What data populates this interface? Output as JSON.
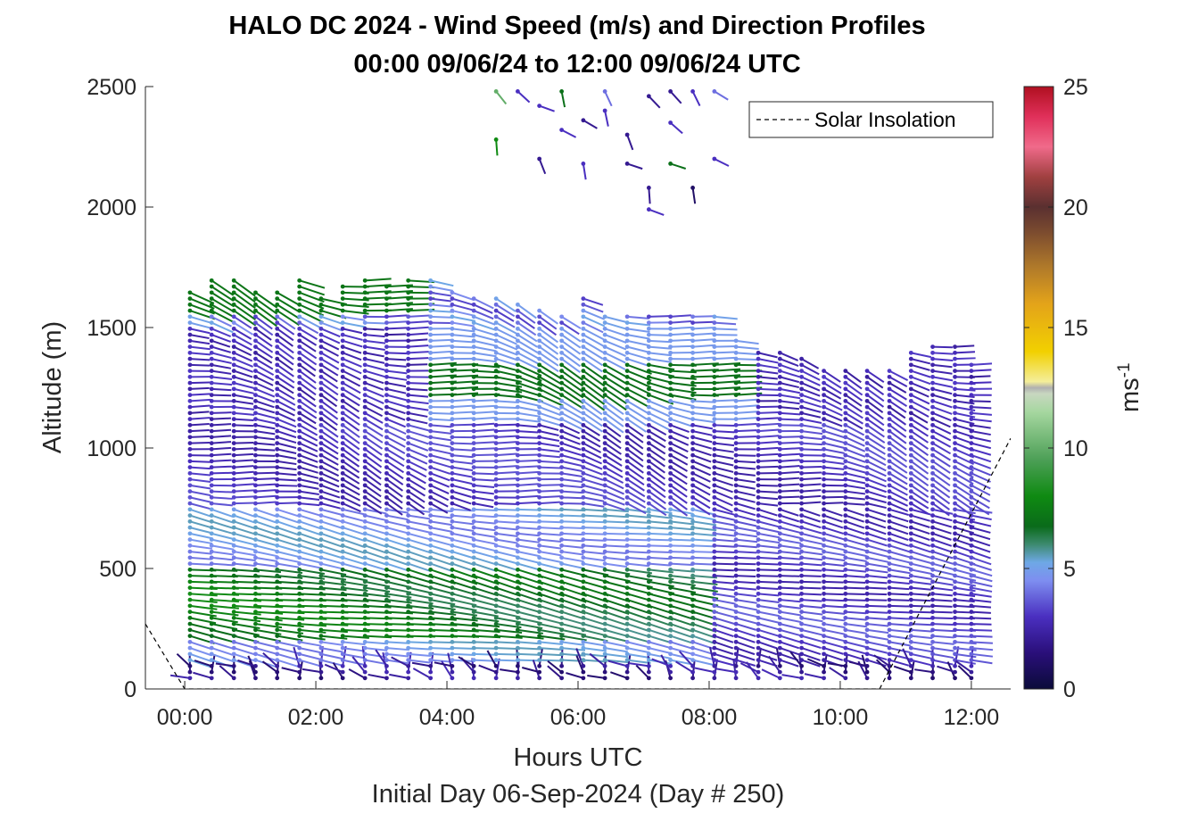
{
  "chart_data": {
    "type": "wind_barb_profile",
    "title": "HALO DC 2024 - Wind Speed (m/s) and Direction Profiles",
    "subtitle": "00:00 09/06/24 to 12:00 09/06/24  UTC",
    "xlabel": "Hours UTC",
    "ylabel": "Altitude (m)",
    "footer": "Initial Day 06-Sep-2024 (Day # 250)",
    "x_ticks": [
      "00:00",
      "02:00",
      "04:00",
      "06:00",
      "08:00",
      "10:00",
      "12:00"
    ],
    "x_tick_hours": [
      0,
      2,
      4,
      6,
      8,
      10,
      12
    ],
    "xlim": [
      -0.6,
      12.6
    ],
    "y_ticks": [
      "0",
      "500",
      "1000",
      "1500",
      "2000",
      "2500"
    ],
    "y_tick_values": [
      0,
      500,
      1000,
      1500,
      2000,
      2500
    ],
    "ylim": [
      0,
      2500
    ],
    "colorbar": {
      "label": "ms",
      "label_superscript": "-1",
      "range": [
        0,
        25
      ],
      "ticks": [
        "0",
        "5",
        "10",
        "15",
        "20",
        "25"
      ],
      "tick_values": [
        0,
        5,
        10,
        15,
        20,
        25
      ]
    },
    "legend": {
      "entries": [
        "Solar Insolation"
      ],
      "placement": "top-right"
    },
    "solar_insolation": {
      "hours": [
        -0.6,
        0,
        10.6,
        12.6
      ],
      "values": [
        270,
        0,
        0,
        1040
      ]
    },
    "profiles": {
      "hours": [
        0.08,
        0.41,
        0.75,
        1.08,
        1.41,
        1.75,
        2.08,
        2.41,
        2.75,
        3.08,
        3.41,
        3.75,
        4.08,
        4.41,
        4.75,
        5.08,
        5.41,
        5.75,
        6.08,
        6.41,
        6.75,
        7.08,
        7.41,
        7.75,
        8.08,
        8.41,
        8.75,
        9.08,
        9.41,
        9.75,
        10.08,
        10.41,
        10.75,
        11.08,
        11.41,
        11.75,
        12.0
      ],
      "top_altitude_m": [
        1660,
        1700,
        1700,
        1660,
        1650,
        1700,
        1620,
        1690,
        1700,
        1690,
        1700,
        1700,
        1660,
        1620,
        1620,
        1600,
        1570,
        1560,
        1620,
        1560,
        1560,
        1560,
        1560,
        1560,
        1560,
        1460,
        1400,
        1400,
        1380,
        1320,
        1320,
        1320,
        1320,
        1400,
        1420,
        1420,
        1350
      ],
      "gate_spacing_m": 25,
      "first_gate_m": 45
    },
    "upper_points": {
      "hours": [
        4.75,
        4.75,
        5.08,
        5.41,
        5.41,
        5.75,
        5.75,
        6.08,
        6.08,
        6.41,
        6.75,
        7.08,
        7.08,
        7.41,
        7.41,
        7.75,
        7.75,
        8.08,
        8.08,
        6.41,
        6.75,
        7.08,
        7.41
      ],
      "altitude_m": [
        2480,
        2280,
        2480,
        2420,
        2200,
        2480,
        2320,
        2360,
        2180,
        2480,
        2180,
        2460,
        2080,
        2480,
        2180,
        2480,
        2080,
        2480,
        2200,
        2400,
        2300,
        1990,
        2350
      ],
      "speed": [
        10,
        8,
        3,
        3,
        2,
        7,
        3,
        2,
        3,
        4,
        2,
        2,
        2,
        2,
        7,
        3,
        1,
        4,
        3,
        3,
        2,
        3,
        3
      ]
    }
  }
}
